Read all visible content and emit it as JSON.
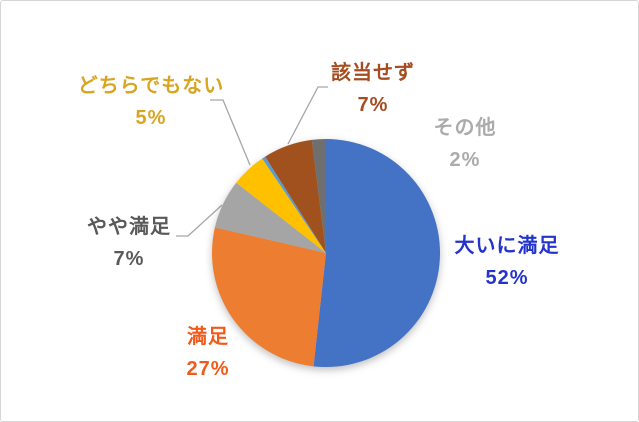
{
  "chart_data": {
    "type": "pie",
    "title": "",
    "legend": "none",
    "label_position": "outside-end",
    "start_angle_deg": 0,
    "direction": "clockwise",
    "background": "#FFFFFF",
    "frame_border_color": "#D6D6D6",
    "leader_line_color": "#A6A6A6",
    "categories": [
      "大いに満足",
      "満足",
      "やや満足",
      "どちらでもない",
      "(未表示)",
      "該当せず",
      "その他"
    ],
    "values": [
      52,
      27,
      7,
      5,
      0.5,
      7,
      2
    ],
    "slices": [
      {
        "label": "大いに満足",
        "pct_label": "52%",
        "value": 52,
        "color": "#4472C4",
        "label_color": "#2433CC",
        "leader_line": false
      },
      {
        "label": "満足",
        "pct_label": "27%",
        "value": 27,
        "color": "#ED7D31",
        "label_color": "#F25A1C",
        "leader_line": false
      },
      {
        "label": "やや満足",
        "pct_label": "7%",
        "value": 7,
        "color": "#A5A5A5",
        "label_color": "#595959",
        "leader_line": true
      },
      {
        "label": "どちらでもない",
        "pct_label": "5%",
        "value": 5,
        "color": "#FFC000",
        "label_color": "#D9A521",
        "leader_line": true
      },
      {
        "label": "",
        "pct_label": "",
        "value": 0.5,
        "color": "#5B9BD5",
        "label_color": "#5B9BD5",
        "leader_line": false
      },
      {
        "label": "該当せず",
        "pct_label": "7%",
        "value": 7,
        "color": "#A0511E",
        "label_color": "#A54D20",
        "leader_line": true
      },
      {
        "label": "その他",
        "pct_label": "2%",
        "value": 2,
        "color": "#6F6F6F",
        "label_color": "#ABABAB",
        "leader_line": false
      }
    ]
  }
}
